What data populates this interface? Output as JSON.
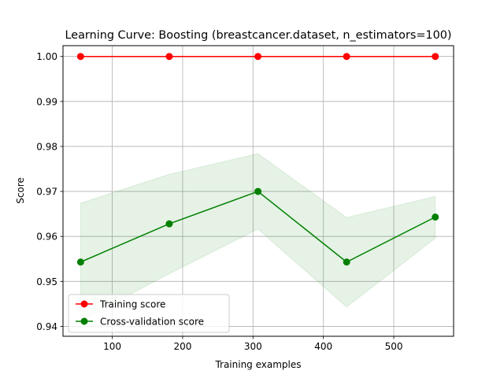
{
  "chart_data": {
    "type": "line",
    "title": "Learning Curve: Boosting (breastcancer.dataset, n_estimators=100)",
    "xlabel": "Training examples",
    "ylabel": "Score",
    "xlim": [
      30,
      585
    ],
    "ylim": [
      0.9378,
      1.0024
    ],
    "xticks": [
      100,
      200,
      300,
      400,
      500
    ],
    "yticks": [
      0.94,
      0.95,
      0.96,
      0.97,
      0.98,
      0.99,
      1.0
    ],
    "ytick_labels": [
      "0.94",
      "0.95",
      "0.96",
      "0.97",
      "0.98",
      "0.99",
      "1.00"
    ],
    "grid": true,
    "legend_position": "lower left",
    "x": [
      55,
      181,
      307,
      433,
      559
    ],
    "series": [
      {
        "name": "Training score",
        "color": "#ff0000",
        "fill_color": "#ff0000",
        "values": [
          1.0,
          1.0,
          1.0,
          1.0,
          1.0
        ],
        "band_lower": [
          1.0,
          1.0,
          1.0,
          1.0,
          1.0
        ],
        "band_upper": [
          1.0,
          1.0,
          1.0,
          1.0,
          1.0
        ]
      },
      {
        "name": "Cross-validation score",
        "color": "#008000",
        "fill_color": "#008000",
        "values": [
          0.9543,
          0.9628,
          0.97,
          0.9543,
          0.9643
        ],
        "band_lower": [
          0.9413,
          0.9517,
          0.9616,
          0.9443,
          0.9596
        ],
        "band_upper": [
          0.9674,
          0.9738,
          0.9784,
          0.9642,
          0.9689
        ]
      }
    ]
  }
}
